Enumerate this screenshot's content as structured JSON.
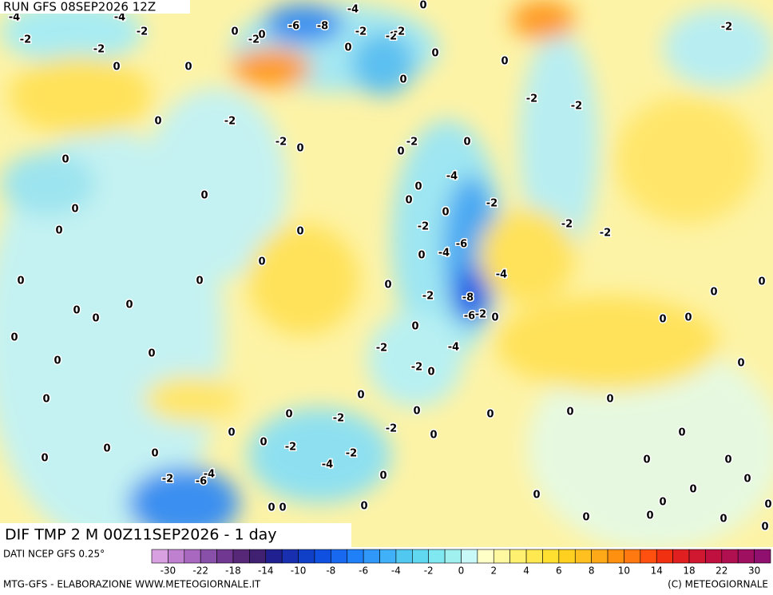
{
  "header": {
    "run": "RUN GFS 08SEP2026 12Z",
    "field": "DIF TMP 2 M 00Z11SEP2026 - 1 day"
  },
  "footer": {
    "source": "DATI NCEP GFS 0.25°",
    "credit": "MTG-GFS - ELABORAZIONE WWW.METEOGIORNALE.IT",
    "copyright": "(C) METEOGIORNALE"
  },
  "colorbar": {
    "colors": [
      "#d8a0e0",
      "#c080d0",
      "#a868c0",
      "#8850a8",
      "#703890",
      "#582878",
      "#402070",
      "#202090",
      "#1830b0",
      "#1040c8",
      "#1050e0",
      "#1868f0",
      "#2080f8",
      "#3098f8",
      "#40b0f8",
      "#50c8f0",
      "#60d8f0",
      "#80e8f0",
      "#a0f0f0",
      "#c8f8f8",
      "#ffffc8",
      "#fff8a0",
      "#fff070",
      "#ffe850",
      "#ffe030",
      "#ffd020",
      "#ffc020",
      "#ffa818",
      "#ff9010",
      "#ff7810",
      "#ff5010",
      "#f03010",
      "#e02020",
      "#d01830",
      "#c01040",
      "#b01050",
      "#a01060",
      "#901070"
    ],
    "ticks": [
      -30,
      -22,
      -18,
      -14,
      -10,
      -8,
      -6,
      -4,
      -2,
      0,
      2,
      4,
      6,
      8,
      10,
      14,
      18,
      22,
      30
    ]
  },
  "contour_labels": [
    -4,
    -4,
    -4,
    0,
    -2,
    -2,
    0,
    -2,
    0,
    -6,
    -8,
    -2,
    -2,
    -2,
    0,
    0,
    -2,
    0,
    0,
    0,
    0,
    -2,
    -2,
    -2,
    0,
    -2,
    -2,
    0,
    -2,
    0,
    0,
    0,
    -4,
    0,
    0,
    0,
    -2,
    0,
    0,
    0,
    -2,
    -2,
    -2,
    0,
    -6,
    -4,
    0,
    0,
    -4,
    0,
    0,
    0,
    0,
    -2,
    -8,
    0,
    0,
    0,
    0,
    -6,
    -2,
    0,
    0,
    0,
    0,
    0,
    -2,
    -4,
    0,
    0,
    -2,
    0,
    0,
    0,
    0,
    0,
    0,
    -2,
    0,
    0,
    0,
    -2,
    0,
    0,
    0,
    0,
    -2,
    0,
    0,
    0,
    -4,
    -2,
    0,
    0,
    -4,
    -2,
    -6,
    0,
    0,
    0,
    0,
    0,
    0,
    0,
    0,
    0,
    0,
    0,
    0,
    0
  ]
}
